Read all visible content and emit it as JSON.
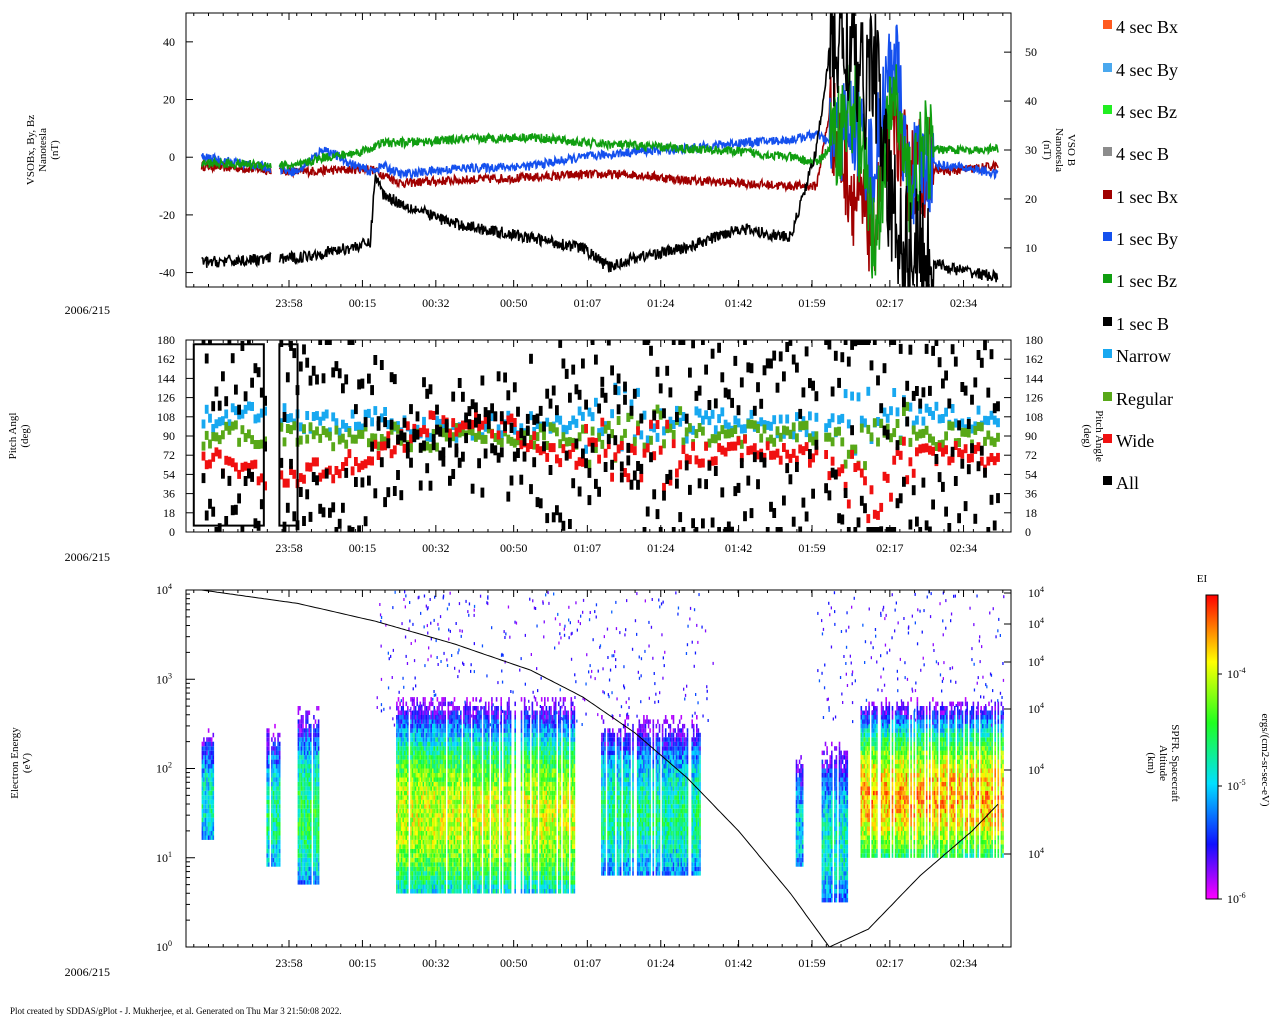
{
  "footer": "Plot created by SDDAS/gPlot - J. Mukherjee, et al.  Generated on Thu Mar 3 21:50:08 2022.",
  "date_label": "2006/215",
  "time_ticks": [
    "23:58",
    "00:15",
    "00:32",
    "00:50",
    "01:07",
    "01:24",
    "01:42",
    "01:59",
    "02:17",
    "02:34"
  ],
  "legend": [
    {
      "label": "4 sec Bx",
      "color": "#ff5a1f"
    },
    {
      "label": "4 sec By",
      "color": "#4aa8ee"
    },
    {
      "label": "4 sec Bz",
      "color": "#22ee22"
    },
    {
      "label": "4 sec B",
      "color": "#8c8c8c"
    },
    {
      "label": "1 sec Bx",
      "color": "#a00000"
    },
    {
      "label": "1 sec By",
      "color": "#1450ee"
    },
    {
      "label": "1 sec Bz",
      "color": "#109e10"
    },
    {
      "label": "1 sec B",
      "color": "#000000"
    },
    {
      "label": "Narrow",
      "color": "#18a8f0"
    },
    {
      "label": "Regular",
      "color": "#58a818"
    },
    {
      "label": "Wide",
      "color": "#f01010"
    },
    {
      "label": "All",
      "color": "#000000"
    }
  ],
  "colorbar": {
    "title": "EI",
    "label": "ergs/(cm2-sr-sec-eV)",
    "ticks": [
      "10-4",
      "10-5",
      "10-6"
    ]
  },
  "chart_data": [
    {
      "type": "line",
      "ylabel_left": [
        "VSOBx, By, Bz",
        "Nanotesla",
        "(nT)"
      ],
      "ylabel_right": [
        "VSO B",
        "Nanotesla",
        "(nT)"
      ],
      "ylim_left": [
        -45,
        50
      ],
      "ylim_right": [
        2,
        58
      ],
      "yticks_left": [
        "40",
        "20",
        "0",
        "-20",
        "-40"
      ],
      "yticks_right": [
        "50",
        "40",
        "30",
        "20",
        "10"
      ],
      "xticks": [
        "23:58",
        "00:15",
        "00:32",
        "00:50",
        "01:07",
        "01:24",
        "01:42",
        "01:59",
        "02:17",
        "02:34"
      ],
      "series": [
        {
          "name": "1 sec Bx",
          "color": "#a00000",
          "x_hours": [
            -0.37,
            0.0,
            0.28,
            0.33,
            0.4,
            0.6,
            0.9,
            1.1,
            1.3,
            1.5,
            1.7,
            1.9,
            2.0,
            2.05,
            2.15,
            2.22,
            2.3,
            2.35,
            2.42,
            2.5,
            2.6,
            2.7
          ],
          "values": [
            -3,
            -5,
            -4,
            -6,
            -9,
            -8,
            -7,
            -6,
            -6,
            -8,
            -9,
            -10,
            -10,
            15,
            -15,
            -25,
            15,
            -5,
            -3,
            -5,
            -4,
            -3
          ]
        },
        {
          "name": "1 sec By",
          "color": "#1450ee",
          "x_hours": [
            -0.37,
            0.0,
            0.1,
            0.2,
            0.28,
            0.33,
            0.4,
            0.6,
            0.9,
            1.1,
            1.3,
            1.5,
            1.7,
            1.9,
            2.0,
            2.05,
            2.15,
            2.22,
            2.3,
            2.35,
            2.42,
            2.5,
            2.6,
            2.7
          ],
          "values": [
            0,
            -5,
            3,
            -2,
            -5,
            -3,
            -6,
            -4,
            -3,
            0,
            2,
            3,
            5,
            6,
            8,
            5,
            12,
            -5,
            40,
            -8,
            -2,
            -3,
            -4,
            -6
          ]
        },
        {
          "name": "1 sec Bz",
          "color": "#109e10",
          "x_hours": [
            -0.37,
            0.0,
            0.1,
            0.2,
            0.28,
            0.33,
            0.4,
            0.6,
            0.9,
            1.1,
            1.3,
            1.5,
            1.7,
            1.9,
            2.0,
            2.05,
            2.15,
            2.22,
            2.3,
            2.35,
            2.42,
            2.5,
            2.6,
            2.7
          ],
          "values": [
            -2,
            -3,
            0,
            1,
            3,
            5,
            5,
            6,
            7,
            5,
            4,
            3,
            2,
            0,
            -2,
            3,
            20,
            -30,
            25,
            -10,
            2,
            3,
            2,
            3
          ]
        },
        {
          "name": "1 sec B",
          "color": "#000000",
          "axis": "right",
          "x_hours": [
            -0.37,
            0.0,
            0.1,
            0.2,
            0.28,
            0.3,
            0.33,
            0.4,
            0.6,
            0.9,
            1.1,
            1.2,
            1.3,
            1.5,
            1.7,
            1.9,
            2.0,
            2.05,
            2.12,
            2.18,
            2.22,
            2.28,
            2.35,
            2.42,
            2.5,
            2.6,
            2.7
          ],
          "values": [
            7,
            8,
            9,
            10,
            11,
            25,
            21,
            19,
            15,
            12,
            10,
            6,
            8,
            10,
            14,
            12,
            30,
            50,
            52,
            42,
            50,
            20,
            10,
            8,
            6,
            5,
            4
          ]
        }
      ]
    },
    {
      "type": "line",
      "ylabel_left": [
        "Pitch Angl",
        "(deg)"
      ],
      "ylabel_right": [
        "Pitch Angle",
        "(deg)"
      ],
      "ylim": [
        0,
        180
      ],
      "yticks": [
        "180",
        "162",
        "144",
        "126",
        "108",
        "90",
        "72",
        "54",
        "36",
        "18",
        "0"
      ],
      "xticks": [
        "23:58",
        "00:15",
        "00:32",
        "00:50",
        "01:07",
        "01:24",
        "01:42",
        "01:59",
        "02:17",
        "02:34"
      ],
      "series": [
        {
          "name": "Narrow",
          "color": "#18a8f0",
          "x_hours": [
            -0.37,
            -0.1,
            0.15,
            0.3,
            0.5,
            0.8,
            1.0,
            1.2,
            1.5,
            1.8,
            2.0,
            2.2,
            2.4,
            2.6,
            2.7
          ],
          "values": [
            105,
            110,
            100,
            105,
            95,
            100,
            100,
            110,
            105,
            100,
            100,
            105,
            110,
            105,
            110
          ]
        },
        {
          "name": "Regular",
          "color": "#58a818",
          "x_hours": [
            -0.37,
            -0.1,
            0.15,
            0.3,
            0.5,
            0.8,
            1.0,
            1.2,
            1.5,
            1.8,
            2.0,
            2.2,
            2.4,
            2.6,
            2.7
          ],
          "values": [
            90,
            92,
            88,
            90,
            88,
            90,
            90,
            88,
            90,
            92,
            90,
            88,
            90,
            90,
            90
          ]
        },
        {
          "name": "Wide",
          "color": "#f01010",
          "x_hours": [
            -0.37,
            -0.1,
            0.15,
            0.3,
            0.5,
            0.8,
            1.0,
            1.2,
            1.5,
            1.8,
            2.0,
            2.2,
            2.4,
            2.6,
            2.7
          ],
          "values": [
            70,
            50,
            60,
            75,
            100,
            100,
            70,
            75,
            70,
            80,
            70,
            30,
            70,
            75,
            60
          ]
        },
        {
          "name": "All",
          "color": "#000000",
          "x_hours": [
            -0.37,
            -0.1,
            0.15,
            0.3,
            0.5,
            0.8,
            1.0,
            1.2,
            1.5,
            1.8,
            2.0,
            2.2,
            2.4,
            2.6,
            2.7
          ],
          "values": [
            160,
            140,
            170,
            120,
            100,
            110,
            150,
            100,
            160,
            150,
            140,
            170,
            150,
            130,
            160
          ]
        }
      ]
    },
    {
      "type": "heatmap",
      "ylabel_left": [
        "Electron Energy",
        "(eV)"
      ],
      "ylabel_right": [
        "SPFR. Spacecraft",
        "Altitude",
        "(km)"
      ],
      "yscale": "log",
      "ylim": [
        1,
        10000
      ],
      "yticks_left": [
        "104",
        "103",
        "102",
        "101",
        "100"
      ],
      "yticks_right": [
        "104",
        "104",
        "104",
        "104",
        "104",
        "104"
      ],
      "xticks": [
        "23:58",
        "00:15",
        "00:32",
        "00:50",
        "01:07",
        "01:24",
        "01:42",
        "01:59",
        "02:17",
        "02:34"
      ],
      "altitude_curve": {
        "x_hours": [
          -0.37,
          0.0,
          0.3,
          0.6,
          0.9,
          1.1,
          1.3,
          1.5,
          1.7,
          1.9,
          2.05,
          2.2,
          2.4,
          2.6,
          2.7
        ],
        "log_eV_equiv": [
          4.0,
          3.85,
          3.65,
          3.4,
          3.1,
          2.8,
          2.4,
          1.9,
          1.3,
          0.6,
          0.0,
          0.2,
          0.8,
          1.3,
          1.6
        ]
      },
      "intensity_regions": [
        {
          "x_start": -0.37,
          "x_end": -0.32,
          "e_min_log": 1.2,
          "e_max_log": 2.6,
          "level": 0.45
        },
        {
          "x_start": -0.12,
          "x_end": -0.07,
          "e_min_log": 0.9,
          "e_max_log": 2.6,
          "level": 0.5
        },
        {
          "x_start": 0.0,
          "x_end": 0.08,
          "e_min_log": 0.7,
          "e_max_log": 2.8,
          "level": 0.55
        },
        {
          "x_start": 0.38,
          "x_end": 1.07,
          "e_min_log": 0.6,
          "e_max_log": 2.9,
          "level": 0.75
        },
        {
          "x_start": 1.17,
          "x_end": 1.55,
          "e_min_log": 0.8,
          "e_max_log": 2.7,
          "level": 0.5
        },
        {
          "x_start": 1.92,
          "x_end": 1.95,
          "e_min_log": 0.9,
          "e_max_log": 2.3,
          "level": 0.4
        },
        {
          "x_start": 2.02,
          "x_end": 2.12,
          "e_min_log": 0.5,
          "e_max_log": 2.4,
          "level": 0.45
        },
        {
          "x_start": 2.17,
          "x_end": 2.72,
          "e_min_log": 1.0,
          "e_max_log": 2.9,
          "level": 0.85
        }
      ]
    }
  ]
}
